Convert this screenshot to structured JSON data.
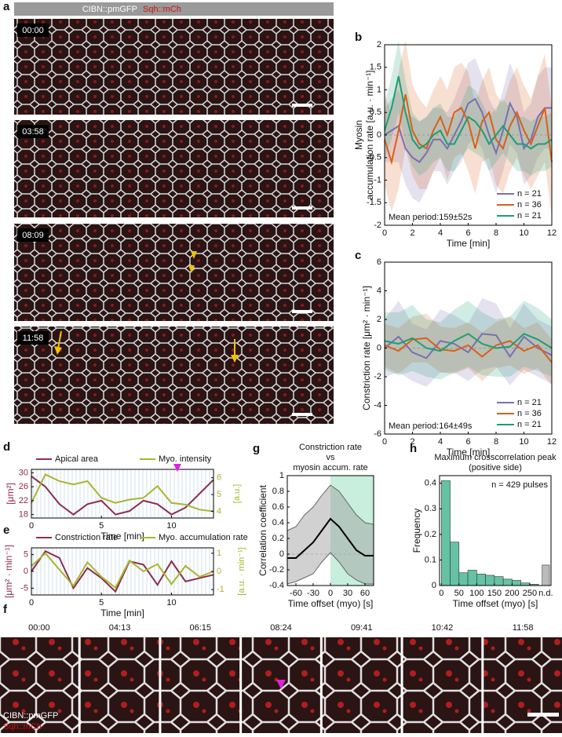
{
  "figure": {
    "panel_labels": [
      "a",
      "b",
      "c",
      "d",
      "e",
      "f",
      "g",
      "h"
    ],
    "a": {
      "header": [
        "CIBN::pmGFP",
        "Sqh::mCh"
      ],
      "times": [
        "00:00",
        "03:58",
        "08:09",
        "11:58"
      ]
    },
    "f": {
      "times": [
        "00:00",
        "04:13",
        "06:15",
        "08:24",
        "09:41",
        "10:42",
        "11:58"
      ],
      "labels": [
        "CIBN::pmGFP",
        "Sqh::mCh"
      ]
    }
  },
  "chart_data": [
    {
      "type": "line",
      "ylabel": [
        "Myosin",
        "accumulation rate [a.u. · min⁻¹]"
      ],
      "xlabel": "Time [min]",
      "x": [
        0,
        0.5,
        1,
        1.5,
        2,
        2.5,
        3,
        3.5,
        4,
        4.5,
        5,
        5.5,
        6,
        6.5,
        7,
        7.5,
        8,
        8.5,
        9,
        9.5,
        10,
        10.5,
        11,
        11.5,
        12
      ],
      "xlim": [
        0,
        12
      ],
      "xticks": [
        0,
        2,
        4,
        6,
        8,
        10,
        12
      ],
      "ylim": [
        -2,
        2
      ],
      "yticks": [
        -2,
        -1.5,
        -1,
        -0.5,
        0,
        0.5,
        1,
        1.5,
        2
      ],
      "legend": "lower right",
      "annotation": "Mean period:159±52s",
      "series": [
        {
          "name": "n = 21",
          "color": "#7b6fb0",
          "values": [
            0,
            0.1,
            0.2,
            -0.3,
            -0.5,
            -0.6,
            -0.4,
            -0.1,
            -0.1,
            -0.3,
            0,
            0.3,
            0.7,
            0.8,
            0.5,
            0,
            -0.4,
            0.1,
            0.7,
            0.4,
            -0.3,
            -0.1,
            0.4,
            0.6,
            0.6
          ],
          "errors": [
            0.6,
            0.7,
            0.8,
            0.8,
            0.9,
            0.9,
            0.8,
            0.7,
            0.7,
            0.8,
            0.8,
            0.9,
            0.9,
            0.9,
            0.8,
            0.8,
            0.9,
            0.9,
            0.9,
            0.8,
            0.8,
            0.8,
            0.9,
            0.9,
            0.9
          ]
        },
        {
          "name": "n = 36",
          "color": "#d95f1a",
          "values": [
            -0.1,
            -0.6,
            0.1,
            0.9,
            0.1,
            -0.2,
            -0.3,
            0.1,
            0.4,
            0,
            0.5,
            0.6,
            0.3,
            -0.3,
            0.3,
            0.5,
            -0.1,
            -0.3,
            0.2,
            0.5,
            0.1,
            -0.2,
            0.2,
            0.6,
            -0.6
          ],
          "errors": [
            1.0,
            1.1,
            1.3,
            1.2,
            1.0,
            1.0,
            0.9,
            0.9,
            0.9,
            1.0,
            1.0,
            1.0,
            1.1,
            1.0,
            0.9,
            1.0,
            1.0,
            1.0,
            1.0,
            1.0,
            1.0,
            1.0,
            1.1,
            1.2,
            1.2
          ]
        },
        {
          "name": "n = 21",
          "color": "#1b9e77",
          "values": [
            0.1,
            0.6,
            1.3,
            0.5,
            -0.1,
            -0.3,
            -0.2,
            0,
            0.1,
            -0.2,
            -0.2,
            0.1,
            0.4,
            0.3,
            0.1,
            -0.2,
            0,
            0.2,
            0,
            -0.2,
            -0.2,
            -0.3,
            -0.2,
            -0.2,
            -0.1
          ],
          "errors": [
            0.6,
            0.7,
            0.8,
            0.7,
            0.6,
            0.6,
            0.6,
            0.6,
            0.6,
            0.6,
            0.6,
            0.6,
            0.7,
            0.7,
            0.6,
            0.6,
            0.6,
            0.6,
            0.6,
            0.6,
            0.6,
            0.6,
            0.6,
            0.6,
            0.6
          ]
        }
      ]
    },
    {
      "type": "line",
      "ylabel": [
        "Constriction rate [μm² · min⁻¹]"
      ],
      "xlabel": "Time [min]",
      "x": [
        0,
        1,
        2,
        3,
        4,
        5,
        6,
        7,
        8,
        9,
        10,
        11,
        12
      ],
      "xlim": [
        0,
        12
      ],
      "xticks": [
        0,
        2,
        4,
        6,
        8,
        10,
        12
      ],
      "ylim": [
        -6,
        6
      ],
      "yticks": [
        -6,
        -4,
        -2,
        0,
        2,
        4,
        6
      ],
      "legend": "lower right",
      "annotation": "Mean period:164±49s",
      "series": [
        {
          "name": "n = 21",
          "color": "#7b6fb0",
          "values": [
            0,
            0.8,
            -0.3,
            -0.7,
            0.5,
            0.3,
            -0.3,
            1.0,
            0.9,
            -0.6,
            0.8,
            0,
            -0.5
          ],
          "errors": [
            2,
            2.5,
            2,
            2,
            2.2,
            2,
            2,
            2.5,
            2.2,
            2,
            2.3,
            2,
            2
          ]
        },
        {
          "name": "n = 36",
          "color": "#d95f1a",
          "values": [
            0.2,
            -0.2,
            0.6,
            0.7,
            -0.1,
            -0.2,
            0.2,
            -0.6,
            0.2,
            0.5,
            -0.2,
            0.2,
            -1.0
          ],
          "errors": [
            1.5,
            1.6,
            1.6,
            1.7,
            1.6,
            1.6,
            1.6,
            1.7,
            1.6,
            1.7,
            1.6,
            1.6,
            1.6
          ]
        },
        {
          "name": "n = 21",
          "color": "#1b9e77",
          "values": [
            0.5,
            0.3,
            0.7,
            0,
            -0.2,
            0.5,
            1.0,
            0.3,
            0,
            0.1,
            1.0,
            0.6,
            0
          ],
          "errors": [
            2,
            2.2,
            2.3,
            2,
            2,
            2.2,
            2.3,
            2.2,
            2,
            2.1,
            2.3,
            2.2,
            2
          ]
        }
      ]
    },
    {
      "type": "line",
      "ylabel": [
        "[μm²]"
      ],
      "y2label": "[a.u.]",
      "xlabel": "Time [min]",
      "x": [
        0,
        1,
        2,
        3,
        4,
        5,
        6,
        7,
        8,
        9,
        10,
        11,
        12,
        13
      ],
      "xlim": [
        0,
        13
      ],
      "xticks": [
        0,
        5,
        10
      ],
      "ylim": [
        17,
        31
      ],
      "yticks": [
        18,
        22,
        26,
        30
      ],
      "y2lim": [
        3.6,
        6.5
      ],
      "y2ticks": [
        4,
        5,
        6
      ],
      "legend": "top",
      "series": [
        {
          "name": "Apical area",
          "color": "#8c2d4f",
          "values": [
            29,
            26,
            21,
            18,
            21,
            22,
            18,
            19,
            22,
            21,
            18,
            20,
            24,
            28
          ]
        },
        {
          "name": "Myo. intensity",
          "color": "#a8b52a",
          "axis": "y2",
          "values": [
            4.5,
            6.2,
            5.8,
            5.6,
            5.8,
            4.8,
            4.5,
            4.7,
            4.8,
            5.5,
            4.5,
            4.4,
            4.1,
            4.0
          ]
        }
      ]
    },
    {
      "type": "line",
      "ylabel": [
        "[μm² · min⁻¹]"
      ],
      "y2label": "[a.u. · min⁻¹]",
      "xlabel": "Time [min]",
      "x": [
        0,
        1,
        2,
        3,
        4,
        5,
        6,
        7,
        8,
        9,
        10,
        11,
        12,
        13
      ],
      "xlim": [
        0,
        13
      ],
      "xticks": [
        0,
        5,
        10
      ],
      "ylim": [
        -7,
        7
      ],
      "yticks": [
        -5,
        0,
        5
      ],
      "y2lim": [
        -1.3,
        1.3
      ],
      "y2ticks": [
        -1,
        0,
        1
      ],
      "legend": "top",
      "series": [
        {
          "name": "Constriction rate",
          "color": "#8c2d4f",
          "values": [
            0,
            6,
            4,
            -5,
            1,
            -2,
            -6,
            3,
            2,
            -4,
            3,
            -3,
            -2,
            -1
          ]
        },
        {
          "name": "Myo. accumulation rate",
          "color": "#a8b52a",
          "axis": "y2",
          "values": [
            0.3,
            1.0,
            0.1,
            -0.8,
            0.5,
            -0.3,
            -0.9,
            0.6,
            0,
            0.4,
            -0.7,
            0.3,
            -0.3,
            0
          ]
        }
      ]
    },
    {
      "type": "line",
      "title": [
        "Constriction rate",
        "vs",
        "myosin accum. rate"
      ],
      "ylabel": [
        "Correlation coefficient"
      ],
      "xlabel": "Time offset (myo) [s]",
      "x": [
        -75,
        -60,
        -45,
        -30,
        -15,
        0,
        15,
        30,
        45,
        60,
        75
      ],
      "xlim": [
        -75,
        75
      ],
      "xticks": [
        -60,
        -30,
        0,
        30,
        60
      ],
      "ylim": [
        -0.4,
        1
      ],
      "yticks": [
        -0.4,
        -0.2,
        0,
        0.2,
        0.4,
        0.6,
        0.8,
        1
      ],
      "highlight": {
        "x": [
          0,
          75
        ],
        "color": "#c8eedd"
      },
      "series": [
        {
          "color": "#000000",
          "values": [
            -0.05,
            -0.05,
            0.05,
            0.15,
            0.3,
            0.45,
            0.35,
            0.2,
            0.05,
            -0.02,
            -0.02
          ],
          "upper": [
            0.3,
            0.35,
            0.5,
            0.6,
            0.75,
            0.88,
            0.8,
            0.65,
            0.5,
            0.4,
            0.38
          ],
          "lower": [
            -0.38,
            -0.35,
            -0.3,
            -0.25,
            -0.1,
            0.02,
            -0.1,
            -0.25,
            -0.33,
            -0.38,
            -0.38
          ]
        }
      ]
    },
    {
      "type": "histogram",
      "title": [
        "Maximum crosscorrelation peak",
        "(positive side)"
      ],
      "ylabel": [
        "Frequency"
      ],
      "xlabel": "Time offset (myo) [s]",
      "bins": [
        0,
        25,
        50,
        75,
        100,
        125,
        150,
        175,
        200,
        225,
        250,
        275
      ],
      "values": [
        0.41,
        0.17,
        0.05,
        0.06,
        0.045,
        0.04,
        0.035,
        0.025,
        0.02,
        0.01,
        0.005
      ],
      "color": "#66c2a5",
      "nd": {
        "label": "n.d.",
        "value": 0.08,
        "color": "#bbbbbb"
      },
      "xlim": [
        -5,
        310
      ],
      "xticks": [
        0,
        50,
        100,
        150,
        200,
        250
      ],
      "ylim": [
        0,
        0.43
      ],
      "yticks": [
        0,
        0.1,
        0.2,
        0.3,
        0.4
      ],
      "annotation": "n = 429 pulses"
    }
  ]
}
